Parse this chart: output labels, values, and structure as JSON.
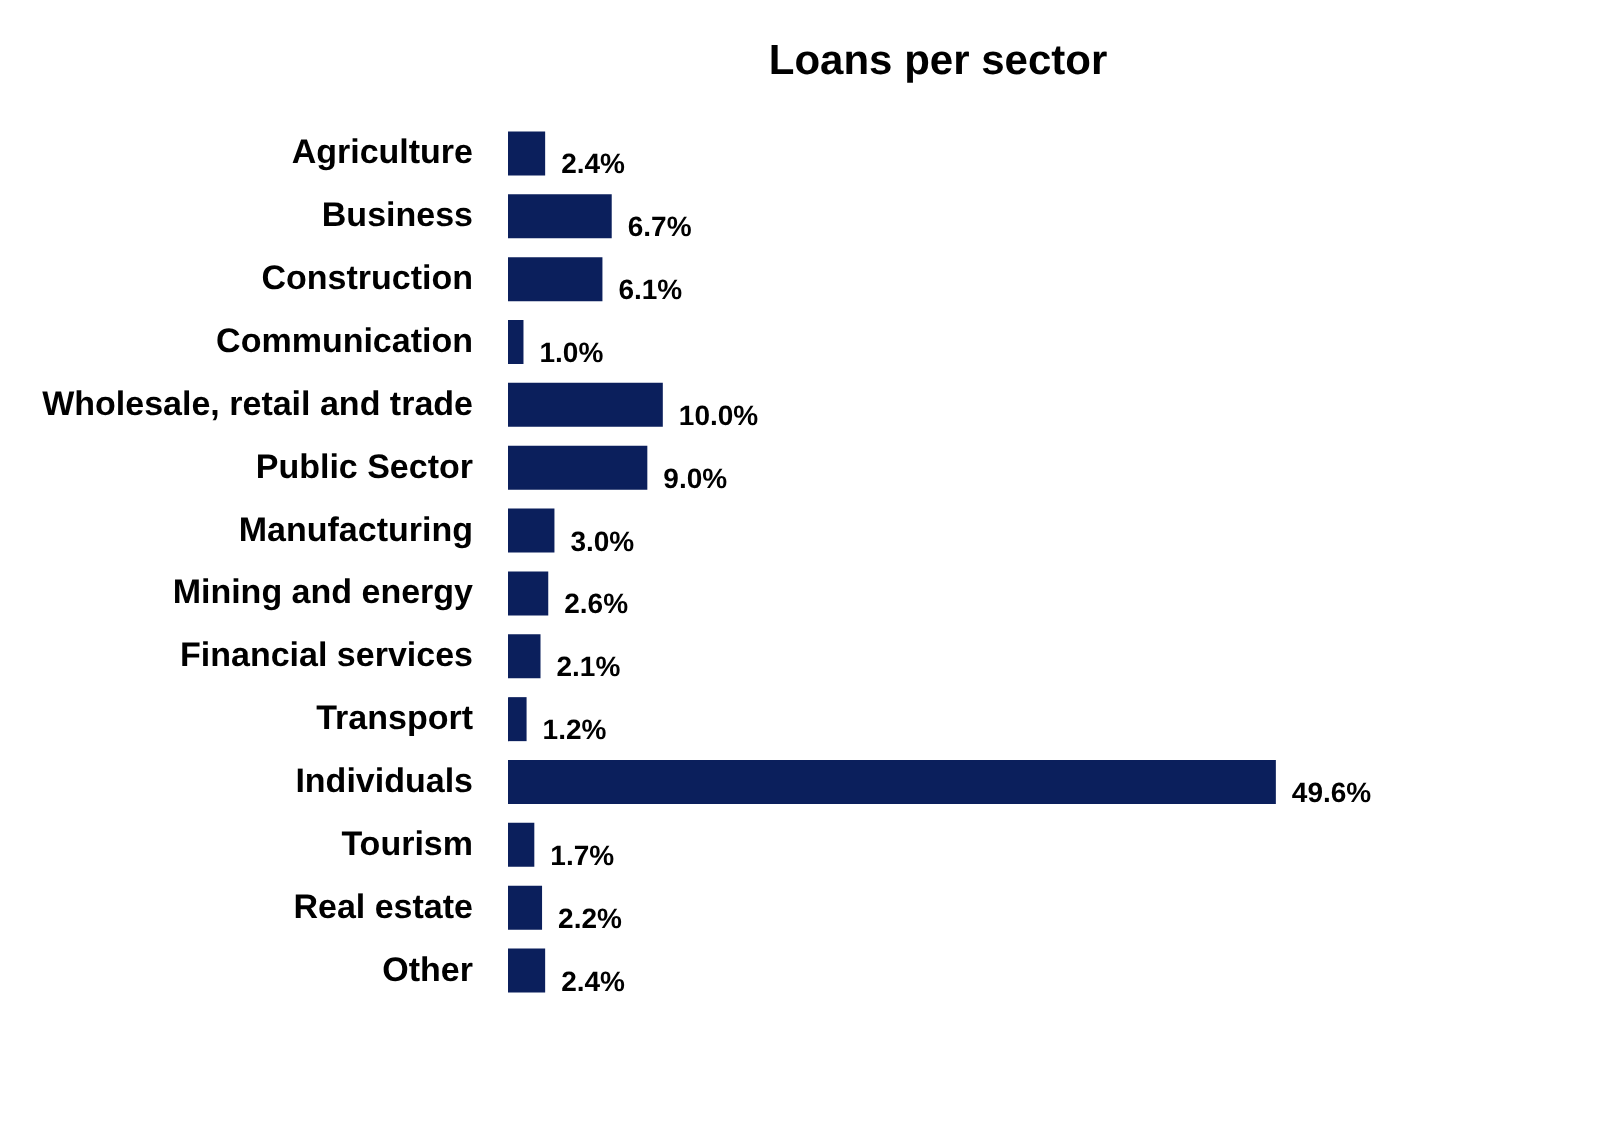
{
  "chart_data": {
    "type": "bar",
    "orientation": "horizontal",
    "title": "Loans per sector",
    "categories": [
      "Agriculture",
      "Business",
      "Construction",
      "Communication",
      "Wholesale, retail and trade",
      "Public Sector",
      "Manufacturing",
      "Mining and energy",
      "Financial services",
      "Transport",
      "Individuals",
      "Tourism",
      "Real estate",
      "Other"
    ],
    "values": [
      2.4,
      6.7,
      6.1,
      1.0,
      10.0,
      9.0,
      3.0,
      2.6,
      2.1,
      1.2,
      49.6,
      1.7,
      2.2,
      2.4
    ],
    "value_labels": [
      "2.4%",
      "6.7%",
      "6.1%",
      "1.0%",
      "10.0%",
      "9.0%",
      "3.0%",
      "2.6%",
      "2.1%",
      "1.2%",
      "49.6%",
      "1.7%",
      "2.2%",
      "2.4%"
    ],
    "color": "#0b1f5c"
  }
}
